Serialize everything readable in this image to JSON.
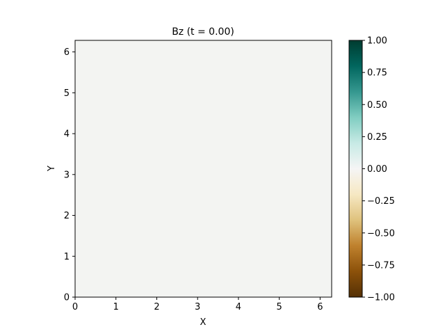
{
  "chart_data": {
    "type": "heatmap",
    "title": "Bz (t = 0.00)",
    "xlabel": "X",
    "ylabel": "Y",
    "xlim": [
      0,
      6.283
    ],
    "ylim": [
      0,
      6.283
    ],
    "x_ticks": [
      0,
      1,
      2,
      3,
      4,
      5,
      6
    ],
    "y_ticks": [
      0,
      1,
      2,
      3,
      4,
      5,
      6
    ],
    "field_value": 0.0,
    "field_color": "#f3f4f2",
    "colorbar": {
      "vmin": -1.0,
      "vmax": 1.0,
      "ticks": [
        -1.0,
        -0.75,
        -0.5,
        -0.25,
        0.0,
        0.25,
        0.5,
        0.75,
        1.0
      ],
      "tick_labels": [
        "−1.00",
        "−0.75",
        "−0.50",
        "−0.25",
        "0.00",
        "0.25",
        "0.50",
        "0.75",
        "1.00"
      ],
      "colormap": "BrBG",
      "colormap_stops": [
        "#543005",
        "#8c510a",
        "#bf812d",
        "#dfc27d",
        "#f6e8c3",
        "#f5f5f5",
        "#c7eae5",
        "#80cdc1",
        "#35978f",
        "#01665e",
        "#003c30"
      ]
    }
  }
}
